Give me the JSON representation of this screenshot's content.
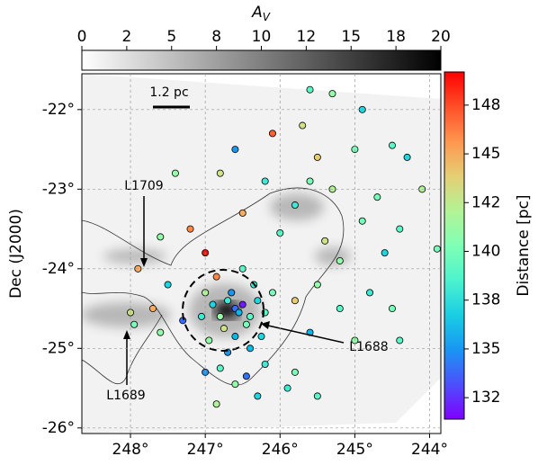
{
  "chart_data": {
    "type": "scatter",
    "ylabel": "Dec (J2000)",
    "xlim": [
      248.65,
      243.85
    ],
    "ylim": [
      -26.07,
      -21.55
    ],
    "xticks": [
      {
        "value": 248,
        "label": "248°"
      },
      {
        "value": 247,
        "label": "247°"
      },
      {
        "value": 246,
        "label": "246°"
      },
      {
        "value": 245,
        "label": "245°"
      },
      {
        "value": 244,
        "label": "244°"
      }
    ],
    "yticks": [
      {
        "value": -22,
        "label": "-22°"
      },
      {
        "value": -23,
        "label": "-23°"
      },
      {
        "value": -24,
        "label": "-24°"
      },
      {
        "value": -25,
        "label": "-25°"
      },
      {
        "value": -26,
        "label": "-26°"
      }
    ],
    "grid": true,
    "av_colorbar": {
      "label": "A",
      "label_sub": "V",
      "lim": [
        0,
        20
      ],
      "ticks": [
        0,
        {
          "value": 2.5,
          "label": "2"
        },
        5,
        {
          "value": 7.5,
          "label": "8"
        },
        10,
        {
          "value": 12.5,
          "label": "12"
        },
        15,
        {
          "value": 17.5,
          "label": "18"
        },
        20
      ]
    },
    "distance_colorbar": {
      "label": "Distance [pc]",
      "lim": [
        131.4,
        149.2
      ],
      "colormap": "rainbow",
      "ticks": [
        {
          "value": 132.5,
          "label": "132"
        },
        135,
        {
          "value": 137.5,
          "label": "138"
        },
        140,
        {
          "value": 142.5,
          "label": "142"
        },
        145,
        {
          "value": 147.5,
          "label": "148"
        }
      ]
    },
    "annotations": {
      "scale": "1.2 pc",
      "l1709": "L1709",
      "l1688": "L1688",
      "l1689": "L1689"
    },
    "x": [
      246.6,
      246.5,
      246.55,
      246.7,
      246.4,
      246.8,
      246.3,
      246.65,
      246.45,
      246.9,
      246.2,
      246.75,
      246.35,
      246.6,
      247.0,
      246.1,
      246.85,
      246.5,
      246.25,
      246.4,
      246.7,
      246.95,
      246.2,
      246.45,
      246.8,
      247.05,
      245.6,
      245.3,
      244.9,
      245.7,
      246.1,
      245.0,
      244.5,
      244.3,
      246.6,
      245.5,
      247.4,
      246.8,
      246.2,
      245.3,
      244.7,
      244.1,
      245.8,
      246.5,
      246.0,
      244.9,
      244.4,
      245.4,
      247.2,
      247.6,
      247.0,
      245.2,
      244.6,
      243.9,
      247.9,
      248.0,
      247.7,
      247.95,
      247.6,
      247.3,
      247.5,
      245.8,
      245.5,
      245.2,
      244.8,
      244.5,
      245.6,
      245.0,
      244.4,
      245.8,
      247.0,
      246.6,
      246.3,
      245.9,
      245.5,
      246.85,
      245.6
    ],
    "y": [
      -24.5,
      -24.45,
      -24.55,
      -24.4,
      -24.6,
      -24.6,
      -24.4,
      -24.3,
      -24.7,
      -24.45,
      -24.55,
      -24.75,
      -24.2,
      -24.85,
      -24.3,
      -24.3,
      -24.1,
      -24.0,
      -24.85,
      -25.0,
      -25.05,
      -24.9,
      -25.2,
      -25.35,
      -25.25,
      -24.6,
      -21.75,
      -21.8,
      -22.0,
      -22.2,
      -22.3,
      -22.5,
      -22.45,
      -22.6,
      -22.5,
      -22.6,
      -22.8,
      -22.8,
      -22.9,
      -23.0,
      -23.1,
      -23.0,
      -23.2,
      -23.3,
      -23.55,
      -23.4,
      -23.5,
      -23.65,
      -23.5,
      -23.6,
      -23.8,
      -23.9,
      -23.8,
      -23.75,
      -24.0,
      -24.55,
      -24.5,
      -24.7,
      -24.8,
      -24.65,
      -24.2,
      -24.4,
      -24.2,
      -24.5,
      -24.3,
      -24.5,
      -24.8,
      -24.9,
      -24.9,
      -25.3,
      -25.3,
      -25.45,
      -25.6,
      -25.5,
      -25.6,
      -25.7,
      -22.9
    ],
    "distance": [
      134,
      132,
      136,
      138,
      139,
      141,
      137,
      135,
      140,
      137,
      139,
      143,
      138,
      136,
      142,
      140,
      146,
      139,
      137,
      136,
      135,
      141,
      138,
      134,
      139,
      138,
      139,
      141,
      137,
      143,
      147,
      140,
      139,
      137,
      135,
      144,
      141,
      143,
      138,
      142,
      140,
      142,
      138,
      145,
      139,
      140,
      139,
      143,
      146,
      141,
      149,
      141,
      137,
      140,
      145,
      143,
      145,
      140,
      141,
      134,
      137,
      144,
      141,
      139,
      138,
      140,
      136,
      141,
      139,
      140,
      135,
      141,
      137,
      138,
      139,
      142,
      140
    ]
  }
}
